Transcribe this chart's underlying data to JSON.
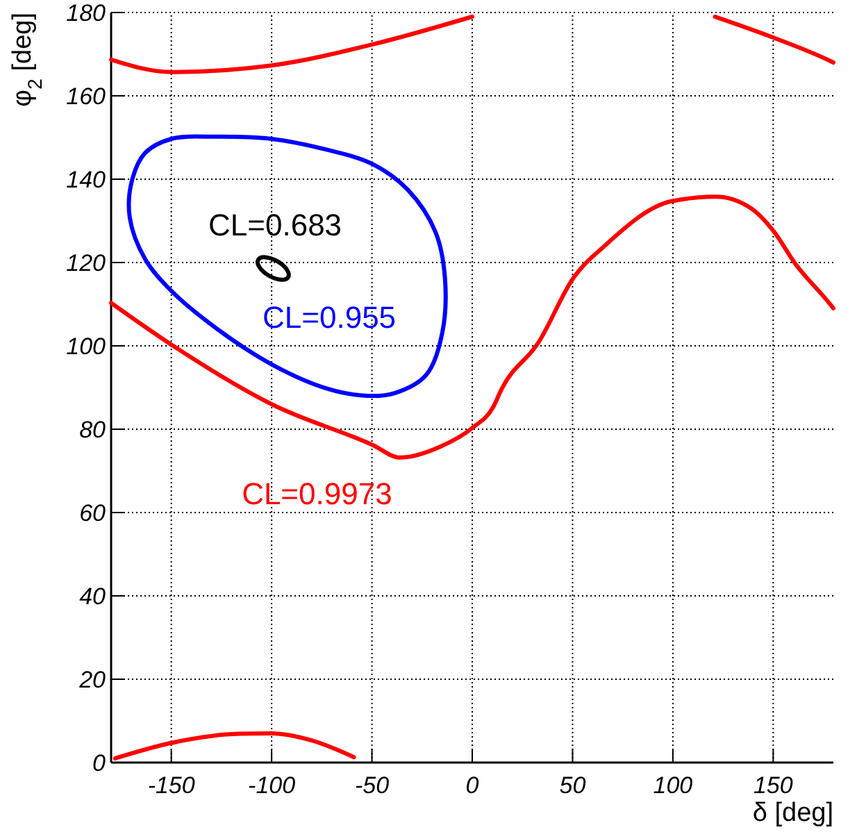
{
  "chart_data": {
    "type": "line",
    "xlabel": "δ [deg]",
    "ylabel": "φ$_{2}$ [deg]",
    "xlim": [
      -180,
      180
    ],
    "ylim": [
      0,
      180
    ],
    "xticks": [
      -150,
      -100,
      -50,
      0,
      50,
      100,
      150
    ],
    "yticks": [
      0,
      20,
      40,
      60,
      80,
      100,
      120,
      140,
      160,
      180
    ],
    "grid": true,
    "legend": false,
    "marker": "none",
    "line_style": "solid",
    "series": [
      {
        "name": "CL=0.9973",
        "color": "#ff0000",
        "x": [
          -180,
          -150,
          -100,
          -50,
          -36,
          -16,
          0,
          10.4,
          14.7,
          33,
          50.4,
          66,
          99.3,
          121.6,
          139,
          150.4,
          161,
          177,
          180
        ],
        "values": [
          110.3,
          100.3,
          86,
          76.3,
          73.2,
          75.8,
          80.3,
          85.3,
          89.7,
          100.8,
          116.3,
          124,
          134.7,
          135.8,
          133,
          127.4,
          119.7,
          110.8,
          109
        ]
      },
      {
        "color": "#ff0000",
        "x": [
          -180,
          -150,
          -100,
          -50,
          0
        ],
        "values": [
          168.7,
          165.7,
          167.3,
          172.3,
          179
        ]
      },
      {
        "color": "#ff0000",
        "x": [
          121,
          150,
          177,
          180
        ],
        "values": [
          179,
          174,
          168.7,
          168
        ]
      },
      {
        "color": "#ff0000",
        "x": [
          -178,
          -150,
          -116,
          -100,
          -80,
          -59
        ],
        "values": [
          1,
          4.7,
          6.9,
          7,
          5.3,
          1.3
        ]
      }
    ],
    "annotations": [
      "CL=0.683",
      "CL=0.955"
    ]
  }
}
